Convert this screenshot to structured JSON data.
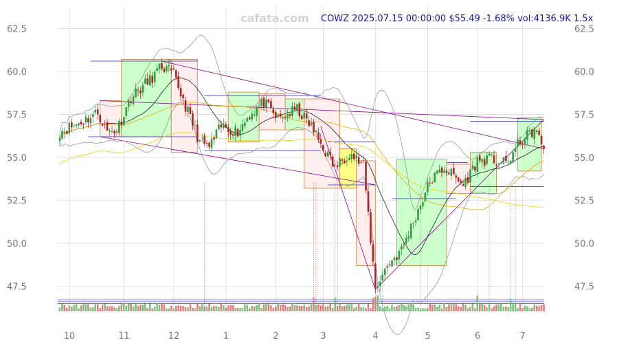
{
  "watermark": "cafata.com",
  "info": {
    "ticker": "COWZ",
    "datetime": "2025.07.15 00:00:00",
    "price": "$55.49",
    "change": "-1.68%",
    "volume": "vol:4136.9K",
    "ratio": "1.5x"
  },
  "chart_data": {
    "type": "candlestick",
    "y_ticks": [
      "62.5",
      "60.0",
      "57.5",
      "55.0",
      "52.5",
      "50.0",
      "47.5"
    ],
    "y_tick_values": [
      62.5,
      60.0,
      57.5,
      55.0,
      52.5,
      50.0,
      47.5
    ],
    "ylim": [
      46.1,
      63.4
    ],
    "x_ticks": [
      "10",
      "11",
      "12",
      "1",
      "2",
      "3",
      "4",
      "5",
      "6",
      "7"
    ],
    "x_tick_index": [
      0,
      23,
      44,
      66,
      87,
      107,
      129,
      151,
      172,
      191
    ],
    "n_bars": 205,
    "key_points": [
      [
        0,
        56.5
      ],
      [
        8,
        57.0
      ],
      [
        16,
        57.6
      ],
      [
        20,
        56.5
      ],
      [
        24,
        56.6
      ],
      [
        30,
        58.5
      ],
      [
        38,
        59.5
      ],
      [
        43,
        60.3
      ],
      [
        48,
        59.8
      ],
      [
        53,
        58.0
      ],
      [
        59,
        55.9
      ],
      [
        63,
        55.6
      ],
      [
        68,
        56.8
      ],
      [
        75,
        56.5
      ],
      [
        80,
        57.5
      ],
      [
        86,
        58.2
      ],
      [
        92,
        57.2
      ],
      [
        100,
        57.8
      ],
      [
        106,
        56.8
      ],
      [
        110,
        55.8
      ],
      [
        116,
        54.4
      ],
      [
        122,
        55.3
      ],
      [
        128,
        54.5
      ],
      [
        133,
        47.4
      ],
      [
        138,
        48.7
      ],
      [
        144,
        49.6
      ],
      [
        150,
        51.6
      ],
      [
        156,
        53.6
      ],
      [
        162,
        54.4
      ],
      [
        170,
        53.4
      ],
      [
        176,
        54.8
      ],
      [
        182,
        54.9
      ],
      [
        188,
        54.6
      ],
      [
        194,
        55.9
      ],
      [
        200,
        56.6
      ],
      [
        204,
        55.49
      ]
    ],
    "last_close": 55.49,
    "colors": {
      "up": "#2e9e3e",
      "down": "#b22222",
      "vol_up": "#7fbf7f",
      "vol_down": "#e08080"
    }
  }
}
